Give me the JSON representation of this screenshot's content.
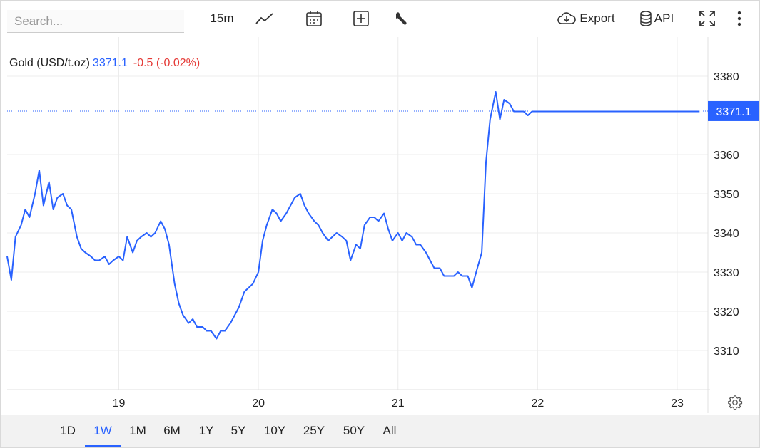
{
  "search": {
    "placeholder": "Search..."
  },
  "toolbar": {
    "interval_label": "15m",
    "export_label": "Export",
    "api_label": "API",
    "icons": [
      "line-chart-icon",
      "calendar-icon",
      "add-indicator-icon",
      "wrench-icon",
      "cloud-download-icon",
      "database-icon",
      "fullscreen-icon",
      "more-vertical-icon"
    ]
  },
  "legend": {
    "name": "Gold (USD/t.oz)",
    "price": "3371.1",
    "change": "-0.5 (-0.02%)"
  },
  "colors": {
    "line": "#2962ff",
    "change_negative": "#e53935",
    "grid": "#ececec"
  },
  "ranges": [
    {
      "label": "1D",
      "active": false
    },
    {
      "label": "1W",
      "active": true
    },
    {
      "label": "1M",
      "active": false
    },
    {
      "label": "6M",
      "active": false
    },
    {
      "label": "1Y",
      "active": false
    },
    {
      "label": "5Y",
      "active": false
    },
    {
      "label": "10Y",
      "active": false
    },
    {
      "label": "25Y",
      "active": false
    },
    {
      "label": "50Y",
      "active": false
    },
    {
      "label": "All",
      "active": false
    }
  ],
  "chart_data": {
    "type": "line",
    "title": "",
    "xlabel": "",
    "ylabel": "",
    "series": [
      {
        "name": "Gold (USD/t.oz)",
        "x": [
          18.2,
          18.23,
          18.26,
          18.3,
          18.33,
          18.36,
          18.4,
          18.43,
          18.46,
          18.5,
          18.53,
          18.56,
          18.6,
          18.63,
          18.66,
          18.7,
          18.73,
          18.76,
          18.8,
          18.83,
          18.86,
          18.9,
          18.93,
          18.96,
          19.0,
          19.03,
          19.06,
          19.1,
          19.13,
          19.16,
          19.2,
          19.23,
          19.26,
          19.3,
          19.33,
          19.36,
          19.4,
          19.43,
          19.46,
          19.5,
          19.53,
          19.56,
          19.6,
          19.63,
          19.66,
          19.7,
          19.73,
          19.76,
          19.8,
          19.83,
          19.86,
          19.9,
          19.93,
          19.96,
          20.0,
          20.03,
          20.06,
          20.1,
          20.13,
          20.16,
          20.2,
          20.23,
          20.26,
          20.3,
          20.33,
          20.36,
          20.4,
          20.43,
          20.46,
          20.5,
          20.53,
          20.56,
          20.6,
          20.63,
          20.66,
          20.7,
          20.73,
          20.76,
          20.8,
          20.83,
          20.86,
          20.9,
          20.93,
          20.96,
          21.0,
          21.03,
          21.06,
          21.1,
          21.13,
          21.16,
          21.2,
          21.23,
          21.26,
          21.3,
          21.33,
          21.36,
          21.4,
          21.43,
          21.46,
          21.5,
          21.53,
          21.56,
          21.6,
          21.63,
          21.66,
          21.7,
          21.73,
          21.76,
          21.8,
          21.83,
          21.86,
          21.9,
          21.93,
          21.96,
          22.0,
          22.03,
          22.06,
          22.1,
          22.13,
          22.16,
          22.2,
          22.23,
          22.26,
          22.3,
          22.33,
          22.36,
          22.4,
          22.43,
          22.46,
          22.5,
          22.53,
          22.56,
          22.6,
          22.63,
          22.66,
          22.7,
          22.73,
          22.76,
          22.8,
          22.83,
          22.86,
          22.88,
          22.9,
          22.93,
          22.96,
          23.0,
          23.03,
          23.06,
          23.1,
          23.13,
          23.16
        ],
        "values": [
          3334,
          3328,
          3339,
          3342,
          3346,
          3344,
          3350,
          3356,
          3347,
          3353,
          3346,
          3349,
          3350,
          3347,
          3346,
          3339,
          3336,
          3335,
          3334,
          3333,
          3333,
          3334,
          3332,
          3333,
          3334,
          3333,
          3339,
          3335,
          3338,
          3339,
          3340,
          3339,
          3340,
          3343,
          3341,
          3337,
          3327,
          3322,
          3319,
          3317,
          3318,
          3316,
          3316,
          3315,
          3315,
          3313,
          3315,
          3315,
          3317,
          3319,
          3321,
          3325,
          3326,
          3327,
          3330,
          3338,
          3342,
          3346,
          3345,
          3343,
          3345,
          3347,
          3349,
          3350,
          3347,
          3345,
          3343,
          3342,
          3340,
          3338,
          3339,
          3340,
          3339,
          3338,
          3333,
          3337,
          3336,
          3342,
          3344,
          3344,
          3343,
          3345,
          3341,
          3338,
          3340,
          3338,
          3340,
          3339,
          3337,
          3337,
          3335,
          3333,
          3331,
          3331,
          3329,
          3329,
          3329,
          3330,
          3329,
          3329,
          3326,
          3330,
          3335,
          3358,
          3369,
          3376,
          3369,
          3374,
          3373,
          3371,
          3371,
          3371,
          3370,
          3371,
          3371,
          3371,
          3371,
          3371,
          3371,
          3371,
          3371,
          3371,
          3371,
          3371,
          3371,
          3371,
          3371,
          3371,
          3371,
          3371,
          3371,
          3371,
          3371,
          3371,
          3371,
          3371,
          3371,
          3371,
          3371,
          3371,
          3371,
          3371,
          3371,
          3371,
          3371,
          3371,
          3371,
          3371,
          3371,
          3371,
          3371
        ]
      }
    ],
    "yticks": [
      3310,
      3320,
      3330,
      3340,
      3350,
      3360,
      3380
    ],
    "xticks": [
      "19",
      "20",
      "21",
      "22",
      "23"
    ],
    "ylim": [
      3300,
      3388
    ],
    "xlim": [
      18.2,
      23.22
    ],
    "last_price_label": "3371.1",
    "grid": true
  }
}
